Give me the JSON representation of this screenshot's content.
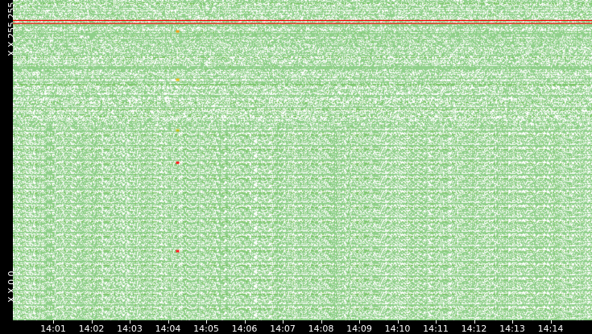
{
  "chart_data": {
    "type": "heatmap",
    "title": "",
    "xlabel": "",
    "ylabel": "",
    "x_ticks": [
      "14:01",
      "14:02",
      "14:03",
      "14:04",
      "14:05",
      "14:06",
      "14:07",
      "14:08",
      "14:09",
      "14:10",
      "14:11",
      "14:12",
      "14:13",
      "14:14"
    ],
    "xlim": [
      "14:00",
      "14:15"
    ],
    "y_labels": {
      "top": "X.X.255.255",
      "bottom": "X.X.0.0"
    },
    "grid": false,
    "colors": {
      "background": "#ffffff",
      "low": "#8fd08a",
      "medium": "#6fc04a",
      "high": "#f0a020",
      "max": "#ff0000"
    },
    "highlights": [
      {
        "kind": "line",
        "y_fraction_from_top": 0.064,
        "color": "#ff0000",
        "x_range": [
          "14:00",
          "14:15"
        ]
      },
      {
        "kind": "line",
        "y_fraction_from_top": 0.073,
        "color": "#ff0000",
        "x_range": [
          "14:00",
          "14:15"
        ]
      },
      {
        "kind": "spot",
        "time": "14:04",
        "y_fraction_from_top": 0.098,
        "color": "#f0a020"
      },
      {
        "kind": "spot",
        "time": "14:04",
        "y_fraction_from_top": 0.249,
        "color": "#f0c020"
      },
      {
        "kind": "spot",
        "time": "14:04",
        "y_fraction_from_top": 0.407,
        "color": "#c0c020"
      },
      {
        "kind": "spot",
        "time": "14:04",
        "y_fraction_from_top": 0.508,
        "color": "#ff2020"
      },
      {
        "kind": "spot",
        "time": "14:04",
        "y_fraction_from_top": 0.784,
        "color": "#ff2020"
      }
    ]
  }
}
